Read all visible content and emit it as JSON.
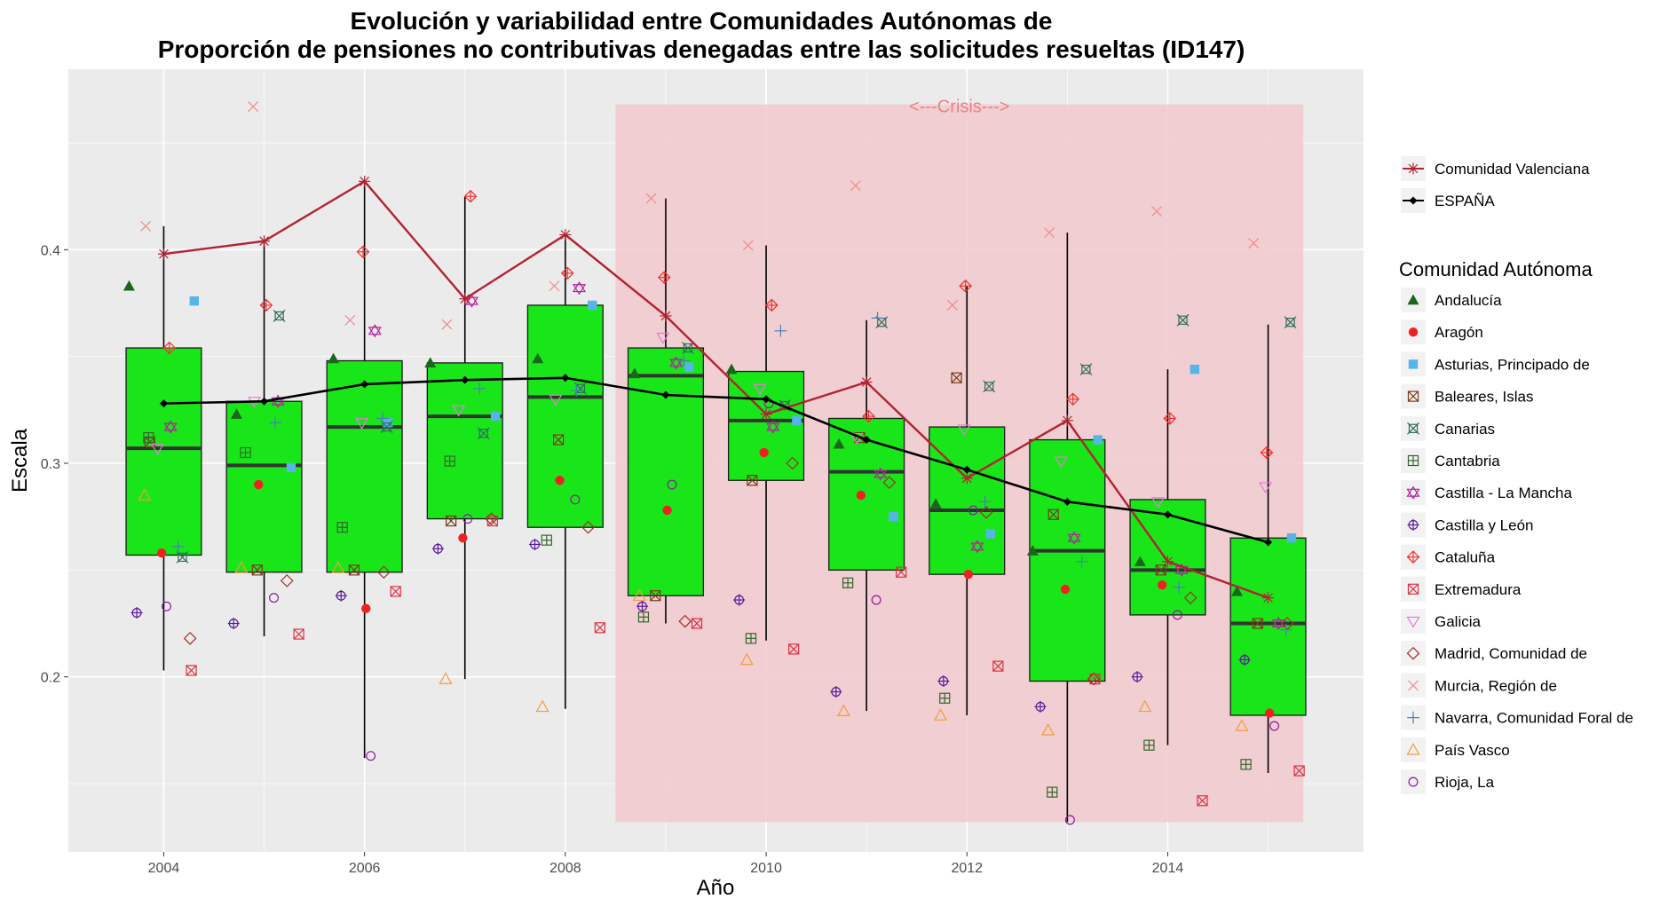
{
  "colors": {
    "panel": "#ebebeb",
    "grid_major": "#ffffff",
    "box_fill": "#19e619",
    "median": "#333333",
    "crisis": "#f2c9cc",
    "crisis_text": "#f08080",
    "spain": "#000000",
    "valencia": "#b22233"
  },
  "chart_data": {
    "type": "box",
    "title": [
      "Evolución y variabilidad entre Comunidades Autónomas de",
      "Proporción de pensiones no contributivas denegadas entre las solicitudes resueltas (ID147)"
    ],
    "xlabel": "Año",
    "ylabel": "Escala",
    "xlim": [
      2003.05,
      2015.95
    ],
    "ylim": [
      0.118,
      0.4845
    ],
    "x_ticks": [
      2004,
      2006,
      2008,
      2010,
      2012,
      2014
    ],
    "y_ticks": [
      0.2,
      0.3,
      0.4
    ],
    "grid": true,
    "crisis": {
      "label": "<---Crisis--->",
      "x0": 2008.5,
      "x1": 2015.35,
      "y0": 0.132,
      "y1": 0.468
    },
    "years": [
      2004,
      2005,
      2006,
      2007,
      2008,
      2009,
      2010,
      2011,
      2012,
      2013,
      2014,
      2015
    ],
    "boxes": [
      {
        "year": 2004,
        "lower": 0.203,
        "q1": 0.257,
        "median": 0.307,
        "q3": 0.354,
        "upper": 0.411
      },
      {
        "year": 2005,
        "lower": 0.219,
        "q1": 0.249,
        "median": 0.299,
        "q3": 0.329,
        "upper": 0.404
      },
      {
        "year": 2006,
        "lower": 0.162,
        "q1": 0.249,
        "median": 0.317,
        "q3": 0.348,
        "upper": 0.432
      },
      {
        "year": 2007,
        "lower": 0.199,
        "q1": 0.274,
        "median": 0.322,
        "q3": 0.347,
        "upper": 0.425
      },
      {
        "year": 2008,
        "lower": 0.185,
        "q1": 0.27,
        "median": 0.331,
        "q3": 0.374,
        "upper": 0.407
      },
      {
        "year": 2009,
        "lower": 0.225,
        "q1": 0.238,
        "median": 0.341,
        "q3": 0.354,
        "upper": 0.424
      },
      {
        "year": 2010,
        "lower": 0.217,
        "q1": 0.292,
        "median": 0.32,
        "q3": 0.343,
        "upper": 0.402
      },
      {
        "year": 2011,
        "lower": 0.184,
        "q1": 0.25,
        "median": 0.296,
        "q3": 0.321,
        "upper": 0.367
      },
      {
        "year": 2012,
        "lower": 0.182,
        "q1": 0.248,
        "median": 0.278,
        "q3": 0.317,
        "upper": 0.383
      },
      {
        "year": 2013,
        "lower": 0.132,
        "q1": 0.198,
        "median": 0.259,
        "q3": 0.311,
        "upper": 0.408
      },
      {
        "year": 2014,
        "lower": 0.168,
        "q1": 0.229,
        "median": 0.25,
        "q3": 0.283,
        "upper": 0.344
      },
      {
        "year": 2015,
        "lower": 0.155,
        "q1": 0.182,
        "median": 0.225,
        "q3": 0.265,
        "upper": 0.365
      }
    ],
    "lines": [
      {
        "name": "Comunidad Valenciana",
        "values": [
          0.398,
          0.404,
          0.432,
          0.377,
          0.407,
          0.369,
          0.323,
          0.338,
          0.293,
          0.32,
          0.254,
          0.237
        ]
      },
      {
        "name": "ESPAÑA",
        "values": [
          0.328,
          0.329,
          0.337,
          0.339,
          0.34,
          0.332,
          0.33,
          0.311,
          0.297,
          0.282,
          0.276,
          0.263
        ]
      }
    ],
    "series": [
      {
        "name": "Andalucía",
        "color": "#1a661a",
        "shape": "triangle",
        "values": [
          0.383,
          0.323,
          0.349,
          0.347,
          0.349,
          0.342,
          0.344,
          0.309,
          0.281,
          0.259,
          0.254,
          0.24
        ]
      },
      {
        "name": "Aragón",
        "color": "#ee2222",
        "shape": "circle",
        "values": [
          0.258,
          0.29,
          0.232,
          0.265,
          0.292,
          0.278,
          0.305,
          0.285,
          0.248,
          0.241,
          0.243,
          0.183
        ]
      },
      {
        "name": "Asturias, Principado de",
        "color": "#56b4e9",
        "shape": "square",
        "values": [
          0.376,
          0.298,
          0.319,
          0.322,
          0.374,
          0.345,
          0.32,
          0.275,
          0.267,
          0.311,
          0.344,
          0.265
        ]
      },
      {
        "name": "Baleares, Islas",
        "color": "#7a3b1a",
        "shape": "boxx",
        "values": [
          0.31,
          0.25,
          0.25,
          0.273,
          0.311,
          0.238,
          0.292,
          0.312,
          0.34,
          0.276,
          0.25,
          0.225
        ]
      },
      {
        "name": "Canarias",
        "color": "#2e6e5e",
        "shape": "boxcross",
        "values": [
          0.256,
          0.369,
          0.317,
          0.314,
          0.335,
          0.354,
          0.327,
          0.366,
          0.336,
          0.344,
          0.367,
          0.366
        ]
      },
      {
        "name": "Cantabria",
        "color": "#33662b",
        "shape": "boxplus",
        "values": [
          0.312,
          0.305,
          0.27,
          0.301,
          0.264,
          0.228,
          0.218,
          0.244,
          0.19,
          0.146,
          0.168,
          0.159
        ]
      },
      {
        "name": "Castilla - La Mancha",
        "color": "#b2249e",
        "shape": "star",
        "values": [
          0.317,
          0.329,
          0.362,
          0.376,
          0.382,
          0.347,
          0.317,
          0.295,
          0.261,
          0.265,
          0.25,
          0.225
        ]
      },
      {
        "name": "Castilla y León",
        "color": "#5a1a9e",
        "shape": "circleplus",
        "values": [
          0.23,
          0.225,
          0.238,
          0.26,
          0.262,
          0.233,
          0.236,
          0.193,
          0.198,
          0.186,
          0.2,
          0.208
        ]
      },
      {
        "name": "Cataluña",
        "color": "#ee3333",
        "shape": "diamondplus",
        "values": [
          0.354,
          0.374,
          0.399,
          0.425,
          0.389,
          0.387,
          0.374,
          0.322,
          0.383,
          0.33,
          0.321,
          0.305
        ]
      },
      {
        "name": "Extremadura",
        "color": "#dd3344",
        "shape": "boxx2",
        "values": [
          0.203,
          0.22,
          0.24,
          0.273,
          0.223,
          0.225,
          0.213,
          0.249,
          0.205,
          0.199,
          0.142,
          0.156
        ]
      },
      {
        "name": "Galicia",
        "color": "#e57ad8",
        "shape": "invtriangle",
        "values": [
          0.307,
          0.329,
          0.319,
          0.325,
          0.33,
          0.359,
          0.335,
          0.312,
          0.316,
          0.301,
          0.282,
          0.289
        ]
      },
      {
        "name": "Madrid, Comunidad de",
        "color": "#a0302a",
        "shape": "diamond",
        "values": [
          0.218,
          0.245,
          0.249,
          0.274,
          0.27,
          0.226,
          0.3,
          0.291,
          0.277,
          0.199,
          0.237,
          0.225
        ]
      },
      {
        "name": "Murcia, Región de",
        "color": "#f08a8a",
        "shape": "x",
        "values": [
          0.411,
          0.467,
          0.367,
          0.365,
          0.383,
          0.424,
          0.402,
          0.43,
          0.374,
          0.408,
          0.418,
          0.403
        ]
      },
      {
        "name": "Navarra, Comunidad Foral de",
        "color": "#4a7fb8",
        "shape": "plus",
        "values": [
          0.261,
          0.319,
          0.321,
          0.335,
          0.334,
          0.348,
          0.362,
          0.368,
          0.282,
          0.254,
          0.242,
          0.222
        ]
      },
      {
        "name": "País Vasco",
        "color": "#f39c3c",
        "shape": "triangleopen",
        "values": [
          0.285,
          0.251,
          0.251,
          0.199,
          0.186,
          0.238,
          0.208,
          0.184,
          0.182,
          0.175,
          0.186,
          0.177
        ]
      },
      {
        "name": "Rioja, La",
        "color": "#8a1a9e",
        "shape": "circleopen",
        "values": [
          0.233,
          0.237,
          0.163,
          0.274,
          0.283,
          0.29,
          0.328,
          0.236,
          0.278,
          0.133,
          0.229,
          0.177
        ]
      }
    ],
    "legend_top": [
      "Comunidad Valenciana",
      "ESPAÑA"
    ],
    "legend_title": "Comunidad Autónoma",
    "legend_position": "right"
  }
}
